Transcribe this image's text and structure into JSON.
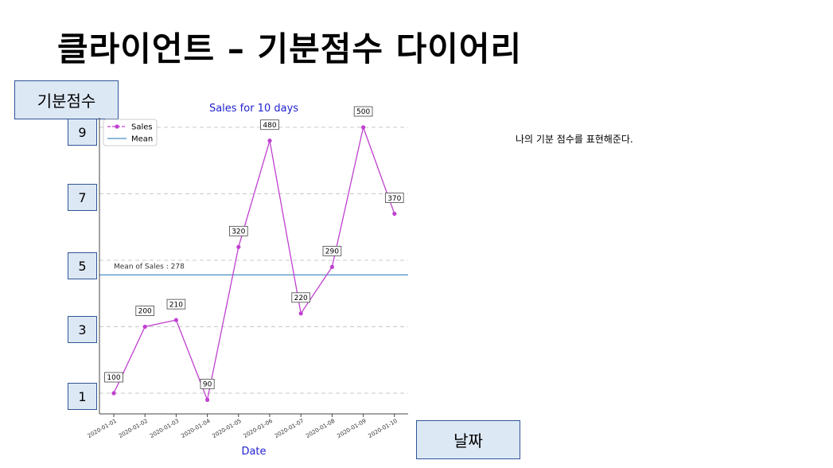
{
  "slide": {
    "title": "클라이언트 – 기분점수 다이어리",
    "y_label": "기분점수",
    "x_label": "날짜",
    "note": "나의 기분 점수를 표현해준다.",
    "scores": [
      "9",
      "7",
      "5",
      "3",
      "1"
    ]
  },
  "chart_data": {
    "type": "line",
    "title": "Sales for 10 days",
    "xlabel": "Date",
    "ylabel": "",
    "categories": [
      "2020-01-01",
      "2020-01-02",
      "2020-01-03",
      "2020-01-04",
      "2020-01-05",
      "2020-01-06",
      "2020-01-07",
      "2020-01-08",
      "2020-01-09",
      "2020-01-10"
    ],
    "series": [
      {
        "name": "Sales",
        "values": [
          100,
          200,
          210,
          90,
          320,
          480,
          220,
          290,
          500,
          370
        ],
        "color": "#c040d0"
      }
    ],
    "mean": {
      "name": "Mean",
      "value": 278,
      "label": "Mean of Sales : 278",
      "color": "#4a8fc4"
    },
    "ylim": [
      60,
      500
    ],
    "grid_lines": [
      100,
      200,
      300,
      400,
      500
    ],
    "grid": true,
    "legend_position": "top-left",
    "title_color": "#1f1fd0",
    "xlabel_color": "#1f1fd0"
  }
}
